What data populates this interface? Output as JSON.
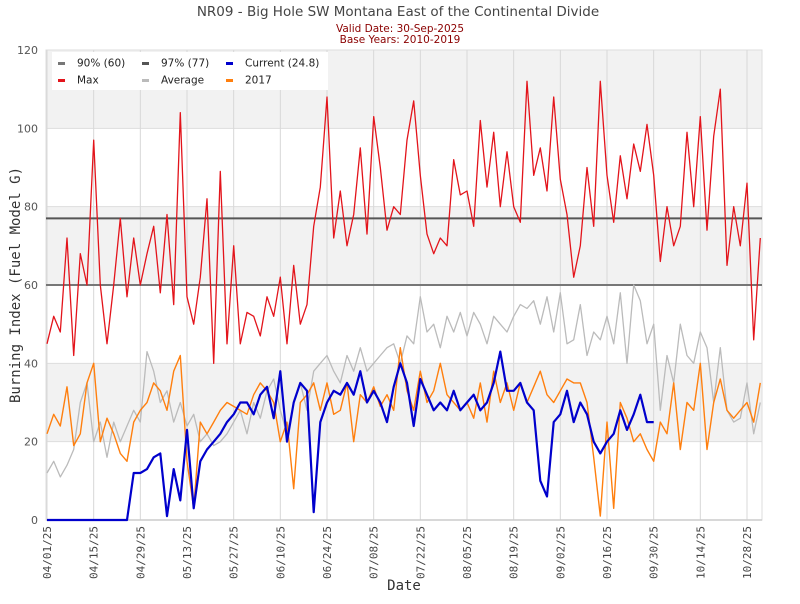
{
  "chart_data": {
    "type": "line",
    "title": "NR09 - Big Hole SW Montana East of the Continental Divide",
    "subtitle_lines": [
      "Valid Date: 30-Sep-2025",
      "Base Years: 2010-2019"
    ],
    "xlabel": "Date",
    "ylabel": "Burning Index (Fuel Model G)",
    "ylim": [
      0,
      120
    ],
    "yticks": [
      0,
      20,
      40,
      60,
      80,
      100,
      120
    ],
    "x_start": "2025-04-01",
    "x_step_days": 2,
    "x_days_total": 214,
    "xticks": [
      {
        "day": 0,
        "label": "04/01/25"
      },
      {
        "day": 14,
        "label": "04/15/25"
      },
      {
        "day": 28,
        "label": "04/29/25"
      },
      {
        "day": 42,
        "label": "05/13/25"
      },
      {
        "day": 56,
        "label": "05/27/25"
      },
      {
        "day": 70,
        "label": "06/10/25"
      },
      {
        "day": 84,
        "label": "06/24/25"
      },
      {
        "day": 98,
        "label": "07/08/25"
      },
      {
        "day": 112,
        "label": "07/22/25"
      },
      {
        "day": 126,
        "label": "08/05/25"
      },
      {
        "day": 140,
        "label": "08/19/25"
      },
      {
        "day": 154,
        "label": "09/02/25"
      },
      {
        "day": 168,
        "label": "09/16/25"
      },
      {
        "day": 182,
        "label": "09/30/25"
      },
      {
        "day": 196,
        "label": "10/14/25"
      },
      {
        "day": 210,
        "label": "10/28/25"
      }
    ],
    "grid": true,
    "legend_position": "top-left",
    "thresholds": [
      {
        "name": "90% (60)",
        "value": 60,
        "color": "#777777"
      },
      {
        "name": "97% (77)",
        "value": 77,
        "color": "#555555"
      }
    ],
    "series": [
      {
        "name": "Max",
        "color": "#e3141b",
        "values": [
          45,
          52,
          48,
          72,
          42,
          68,
          60,
          97,
          60,
          45,
          60,
          77,
          57,
          72,
          60,
          68,
          75,
          58,
          78,
          55,
          104,
          57,
          50,
          62,
          82,
          40,
          89,
          45,
          70,
          45,
          53,
          52,
          47,
          57,
          52,
          62,
          45,
          65,
          50,
          55,
          75,
          85,
          108,
          72,
          84,
          70,
          78,
          95,
          73,
          103,
          90,
          74,
          80,
          78,
          97,
          107,
          88,
          73,
          68,
          72,
          70,
          92,
          83,
          84,
          75,
          102,
          85,
          99,
          80,
          94,
          80,
          76,
          112,
          88,
          95,
          84,
          108,
          87,
          78,
          62,
          70,
          90,
          75,
          112,
          88,
          76,
          93,
          82,
          96,
          89,
          101,
          88,
          66,
          80,
          70,
          75,
          99,
          80,
          103,
          74,
          98,
          110,
          65,
          80,
          70,
          86,
          46,
          72
        ]
      },
      {
        "name": "Average",
        "color": "#bbbbbb",
        "values": [
          12,
          15,
          11,
          14,
          18,
          30,
          35,
          20,
          25,
          16,
          25,
          20,
          24,
          28,
          25,
          43,
          38,
          30,
          33,
          25,
          30,
          24,
          27,
          20,
          22,
          19,
          20,
          22,
          25,
          28,
          22,
          30,
          26,
          33,
          36,
          28,
          22,
          30,
          35,
          28,
          38,
          40,
          42,
          38,
          35,
          42,
          38,
          44,
          38,
          40,
          42,
          44,
          45,
          40,
          47,
          45,
          57,
          48,
          50,
          44,
          52,
          48,
          53,
          47,
          53,
          50,
          45,
          52,
          50,
          48,
          52,
          55,
          54,
          56,
          50,
          57,
          48,
          58,
          45,
          46,
          55,
          42,
          48,
          46,
          52,
          45,
          58,
          40,
          60,
          56,
          45,
          50,
          28,
          42,
          35,
          50,
          42,
          40,
          48,
          44,
          30,
          44,
          28,
          25,
          26,
          35,
          22,
          30
        ]
      },
      {
        "name": "2017",
        "color": "#ff7f0e",
        "values": [
          22,
          27,
          24,
          34,
          19,
          22,
          35,
          40,
          20,
          26,
          22,
          17,
          15,
          25,
          28,
          30,
          35,
          33,
          28,
          38,
          42,
          15,
          3,
          25,
          22,
          25,
          28,
          30,
          29,
          28,
          27,
          32,
          35,
          33,
          30,
          20,
          25,
          8,
          30,
          32,
          35,
          28,
          35,
          27,
          28,
          35,
          20,
          32,
          30,
          34,
          29,
          32,
          28,
          44,
          33,
          28,
          38,
          30,
          33,
          40,
          32,
          30,
          28,
          30,
          26,
          35,
          25,
          38,
          30,
          35,
          28,
          35,
          30,
          34,
          38,
          32,
          30,
          33,
          36,
          35,
          35,
          30,
          16,
          1,
          25,
          3,
          30,
          26,
          20,
          22,
          18,
          15,
          25,
          22,
          35,
          18,
          30,
          28,
          40,
          18,
          30,
          36,
          28,
          26,
          28,
          30,
          25,
          35
        ]
      },
      {
        "name": "Current (24.8)",
        "color": "#0000cc",
        "values": [
          0,
          0,
          0,
          0,
          0,
          0,
          0,
          0,
          0,
          0,
          0,
          0,
          0,
          12,
          12,
          13,
          16,
          17,
          1,
          13,
          5,
          23,
          3,
          15,
          18,
          20,
          22,
          25,
          27,
          30,
          30,
          27,
          32,
          34,
          26,
          38,
          20,
          30,
          35,
          33,
          2,
          25,
          30,
          33,
          32,
          35,
          32,
          38,
          30,
          33,
          30,
          25,
          34,
          40,
          35,
          24,
          36,
          32,
          28,
          30,
          28,
          33,
          28,
          30,
          32,
          28,
          30,
          35,
          43,
          33,
          33,
          35,
          30,
          28,
          10,
          6,
          25,
          27,
          33,
          25,
          30,
          27,
          20,
          17,
          20,
          22,
          28,
          23,
          27,
          32,
          25,
          25
        ]
      }
    ],
    "legend_order": [
      "90% (60)",
      "97% (77)",
      "Current (24.8)",
      "Max",
      "Average",
      "2017"
    ]
  }
}
